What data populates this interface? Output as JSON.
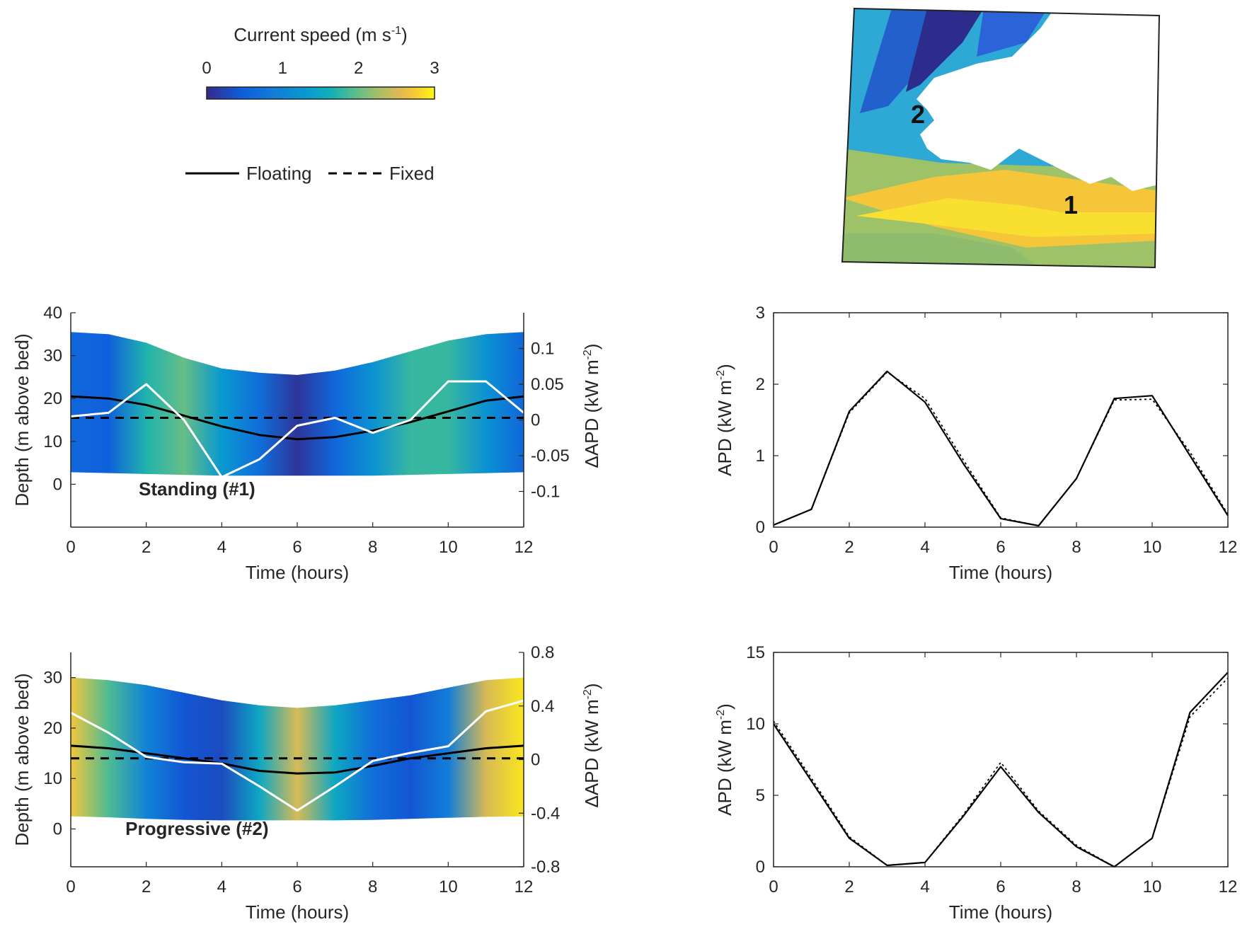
{
  "colorbar": {
    "title_prefix": "Current speed (m s",
    "title_exp": "-1",
    "title_suffix": ")",
    "ticks": [
      "0",
      "1",
      "2",
      "3"
    ],
    "range": [
      0,
      3
    ],
    "colormap": "parula"
  },
  "legend": {
    "items": [
      {
        "label": "Floating",
        "style": "solid"
      },
      {
        "label": "Fixed",
        "style": "dashed"
      }
    ]
  },
  "map": {
    "labels": [
      "1",
      "2"
    ],
    "land_color": "#ffffff"
  },
  "colors": {
    "floating": "#000000",
    "fixed": "#000000",
    "delta_apd": "#ffffff",
    "axes": "#262626"
  },
  "chart_data": [
    {
      "id": "standing_depth",
      "type": "line",
      "annotation": "Standing (#1)",
      "xlabel": "Time (hours)",
      "ylabel": "Depth (m above bed)",
      "ylabel2_prefix": "ΔAPD (kW m",
      "ylabel2_exp": "-2",
      "ylabel2_suffix": ")",
      "xlim": [
        0,
        12
      ],
      "ylim": [
        -10,
        40
      ],
      "y2lim": [
        -0.15,
        0.15
      ],
      "xticks": [
        "0",
        "2",
        "4",
        "6",
        "8",
        "10",
        "12"
      ],
      "yticks": [
        "0",
        "10",
        "20",
        "30",
        "40"
      ],
      "y2ticks": [
        "-0.1",
        "-0.05",
        "0",
        "0.05",
        "0.1"
      ],
      "x": [
        0,
        1,
        2,
        3,
        4,
        5,
        6,
        7,
        8,
        9,
        10,
        11,
        12
      ],
      "speed_band": {
        "bottom": [
          2.8,
          2.6,
          2.4,
          2.2,
          2.0,
          2.0,
          2.0,
          2.0,
          2.0,
          2.2,
          2.4,
          2.6,
          2.8
        ],
        "top": [
          35.5,
          35.0,
          33.0,
          29.5,
          27.0,
          26.0,
          25.5,
          26.5,
          28.5,
          31.0,
          33.5,
          35.0,
          35.5
        ],
        "speed": [
          0.6,
          0.5,
          1.7,
          2.0,
          1.3,
          0.7,
          0.1,
          0.6,
          1.2,
          1.8,
          1.8,
          1.2,
          0.6
        ]
      },
      "series": [
        {
          "name": "Floating",
          "axis": "left",
          "values": [
            20.5,
            20.0,
            18.5,
            16.0,
            13.5,
            11.5,
            10.5,
            11.0,
            12.5,
            14.5,
            17.0,
            19.5,
            20.5
          ]
        },
        {
          "name": "Fixed",
          "axis": "left",
          "values": [
            15.5,
            15.5,
            15.5,
            15.5,
            15.5,
            15.5,
            15.5,
            15.5,
            15.5,
            15.5,
            15.5,
            15.5,
            15.5
          ]
        },
        {
          "name": "ΔAPD",
          "axis": "right",
          "values": [
            0.005,
            0.01,
            0.05,
            0.0,
            -0.08,
            -0.055,
            -0.008,
            0.003,
            -0.018,
            0.0,
            0.054,
            0.054,
            0.01
          ]
        }
      ]
    },
    {
      "id": "standing_apd",
      "type": "line",
      "xlabel": "Time (hours)",
      "ylabel_prefix": "APD (kW m",
      "ylabel_exp": "-2",
      "ylabel_suffix": ")",
      "xlim": [
        0,
        12
      ],
      "ylim": [
        0,
        3
      ],
      "xticks": [
        "0",
        "2",
        "4",
        "6",
        "8",
        "10",
        "12"
      ],
      "yticks": [
        "0",
        "1",
        "2",
        "3"
      ],
      "x": [
        0,
        1,
        2,
        3,
        4,
        5,
        6,
        7,
        8,
        9,
        10,
        11,
        12
      ],
      "series": [
        {
          "name": "Floating",
          "values": [
            0.03,
            0.25,
            1.62,
            2.18,
            1.75,
            0.9,
            0.12,
            0.02,
            0.68,
            1.8,
            1.84,
            1.0,
            0.16
          ]
        },
        {
          "name": "Fixed",
          "values": [
            0.03,
            0.25,
            1.6,
            2.17,
            1.8,
            0.95,
            0.13,
            0.02,
            0.68,
            1.78,
            1.79,
            1.05,
            0.18
          ]
        }
      ]
    },
    {
      "id": "progressive_depth",
      "type": "line",
      "annotation": "Progressive (#2)",
      "xlabel": "Time (hours)",
      "ylabel": "Depth (m above bed)",
      "ylabel2_prefix": "ΔAPD (kW m",
      "ylabel2_exp": "-2",
      "ylabel2_suffix": ")",
      "xlim": [
        0,
        12
      ],
      "ylim": [
        -7.5,
        35
      ],
      "y2lim": [
        -0.8,
        0.8
      ],
      "xticks": [
        "0",
        "2",
        "4",
        "6",
        "8",
        "10",
        "12"
      ],
      "yticks": [
        "0",
        "10",
        "20",
        "30"
      ],
      "y2ticks": [
        "-0.8",
        "-0.4",
        "0",
        "0.4",
        "0.8"
      ],
      "x": [
        0,
        1,
        2,
        3,
        4,
        5,
        6,
        7,
        8,
        9,
        10,
        11,
        12
      ],
      "speed_band": {
        "bottom": [
          2.5,
          2.3,
          2.0,
          1.8,
          1.7,
          1.7,
          1.7,
          1.7,
          1.8,
          2.0,
          2.2,
          2.4,
          2.5
        ],
        "top": [
          30.0,
          29.5,
          28.5,
          27.0,
          25.5,
          24.5,
          24.0,
          24.5,
          25.5,
          26.5,
          28.0,
          29.5,
          30.0
        ],
        "speed": [
          2.7,
          1.9,
          1.0,
          0.4,
          0.3,
          1.5,
          2.5,
          1.5,
          0.7,
          0.4,
          0.9,
          2.5,
          2.9
        ]
      },
      "series": [
        {
          "name": "Floating",
          "axis": "left",
          "values": [
            16.5,
            16.0,
            15.0,
            14.0,
            13.0,
            11.5,
            11.0,
            11.2,
            12.5,
            14.0,
            15.0,
            16.0,
            16.5
          ]
        },
        {
          "name": "Fixed",
          "axis": "left",
          "values": [
            14.0,
            14.0,
            14.0,
            14.0,
            14.0,
            14.0,
            14.0,
            14.0,
            14.0,
            14.0,
            14.0,
            14.0,
            14.0
          ]
        },
        {
          "name": "ΔAPD",
          "axis": "right",
          "values": [
            0.35,
            0.2,
            0.02,
            -0.02,
            -0.03,
            -0.2,
            -0.38,
            -0.2,
            -0.01,
            0.05,
            0.1,
            0.36,
            0.44
          ]
        }
      ]
    },
    {
      "id": "progressive_apd",
      "type": "line",
      "xlabel": "Time (hours)",
      "ylabel_prefix": "APD (kW m",
      "ylabel_exp": "-2",
      "ylabel_suffix": ")",
      "xlim": [
        0,
        12
      ],
      "ylim": [
        0,
        15
      ],
      "xticks": [
        "0",
        "2",
        "4",
        "6",
        "8",
        "10",
        "12"
      ],
      "yticks": [
        "0",
        "5",
        "10",
        "15"
      ],
      "x": [
        0,
        1,
        2,
        3,
        4,
        5,
        6,
        7,
        8,
        9,
        10,
        11,
        12
      ],
      "series": [
        {
          "name": "Floating",
          "values": [
            10.0,
            6.0,
            2.0,
            0.1,
            0.3,
            3.5,
            7.0,
            3.8,
            1.4,
            0.0,
            2.0,
            10.8,
            13.6
          ]
        },
        {
          "name": "Fixed",
          "values": [
            10.2,
            6.2,
            2.1,
            0.1,
            0.3,
            3.6,
            7.3,
            3.9,
            1.5,
            0.0,
            2.0,
            10.5,
            13.2
          ]
        }
      ]
    }
  ]
}
